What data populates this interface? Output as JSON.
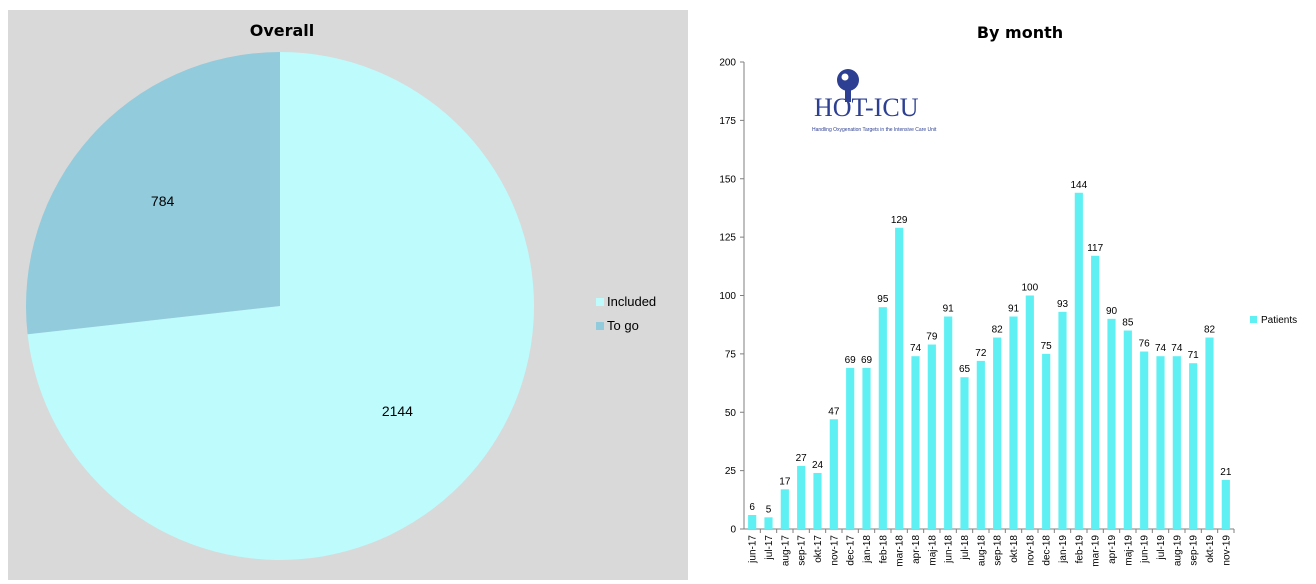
{
  "colors": {
    "included": "#bdfbfd",
    "to_go": "#92cbdc",
    "bar": "#5ff0f4",
    "logo": "#2c3f92",
    "panel": "#d9d9d9"
  },
  "logo": {
    "name": "HOT-ICU",
    "tagline": "Handling Oxygenation Targets in the Intensive Care Unit"
  },
  "chart_data": [
    {
      "type": "pie",
      "title": "Overall",
      "categories": [
        "Included",
        "To go"
      ],
      "values": [
        2144,
        784
      ],
      "legend": "right"
    },
    {
      "type": "bar",
      "title": "By month",
      "categories": [
        "jun-17",
        "jul-17",
        "aug-17",
        "sep-17",
        "okt-17",
        "nov-17",
        "dec-17",
        "jan-18",
        "feb-18",
        "mar-18",
        "apr-18",
        "maj-18",
        "jun-18",
        "jul-18",
        "aug-18",
        "sep-18",
        "okt-18",
        "nov-18",
        "dec-18",
        "jan-19",
        "feb-19",
        "mar-19",
        "apr-19",
        "maj-19",
        "jun-19",
        "jul-19",
        "aug-19",
        "sep-19",
        "okt-19",
        "nov-19"
      ],
      "series": [
        {
          "name": "Patients",
          "values": [
            6,
            5,
            17,
            27,
            24,
            47,
            69,
            69,
            95,
            129,
            74,
            79,
            91,
            65,
            72,
            82,
            91,
            100,
            75,
            93,
            144,
            117,
            90,
            85,
            76,
            74,
            74,
            71,
            82,
            21
          ]
        }
      ],
      "ylim": [
        0,
        200
      ],
      "yticks": [
        0,
        25,
        50,
        75,
        100,
        125,
        150,
        175,
        200
      ],
      "legend": "right",
      "grid": false
    }
  ]
}
